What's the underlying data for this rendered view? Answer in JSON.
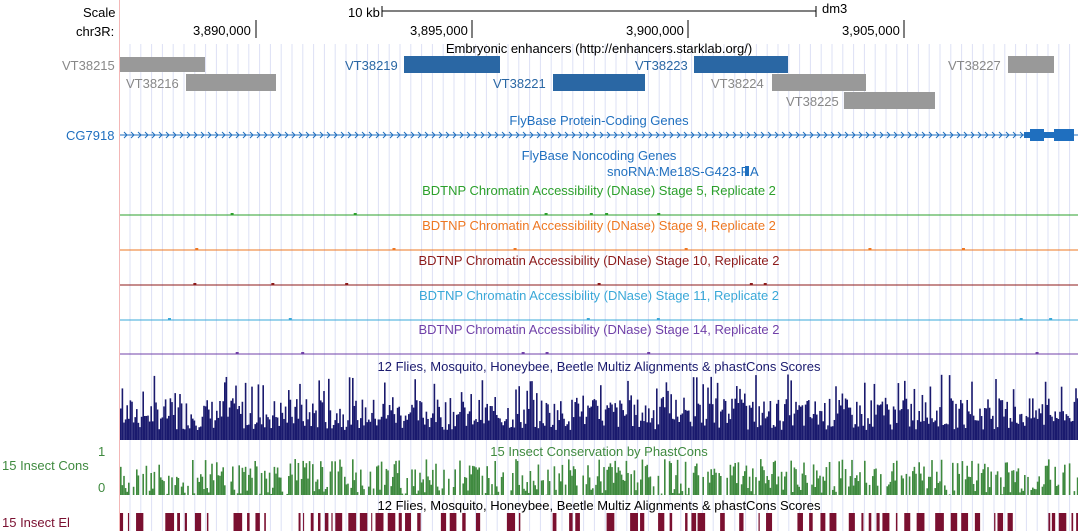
{
  "header": {
    "scale_label": "Scale",
    "chrom_label": "chr3R:",
    "scale_bar_text": "10 kb",
    "assembly": "dm3",
    "positions": [
      "3,890,000",
      "3,895,000",
      "3,900,000",
      "3,905,000"
    ]
  },
  "tracks": {
    "enhancers": {
      "title": "Embryonic enhancers (http://enhancers.starklab.org/)",
      "items": [
        {
          "name": "VT38215",
          "style": "gray"
        },
        {
          "name": "VT38216",
          "style": "gray"
        },
        {
          "name": "VT38219",
          "style": "blue"
        },
        {
          "name": "VT38221",
          "style": "blue"
        },
        {
          "name": "VT38223",
          "style": "blue"
        },
        {
          "name": "VT38224",
          "style": "gray"
        },
        {
          "name": "VT38225",
          "style": "gray"
        },
        {
          "name": "VT38227",
          "style": "gray"
        }
      ]
    },
    "protein_genes": {
      "title": "FlyBase Protein-Coding Genes",
      "gene": "CG7918"
    },
    "noncoding_genes": {
      "title": "FlyBase Noncoding Genes",
      "gene": "snoRNA:Me18S-G423-RA"
    },
    "dnase": [
      {
        "title": "BDTNP Chromatin Accessibility (DNase) Stage 5, Replicate 2",
        "color": "#2ca02c"
      },
      {
        "title": "BDTNP Chromatin Accessibility (DNase) Stage 9, Replicate 2",
        "color": "#ee7722"
      },
      {
        "title": "BDTNP Chromatin Accessibility (DNase) Stage 10, Replicate 2",
        "color": "#8c1a1a"
      },
      {
        "title": "BDTNP Chromatin Accessibility (DNase) Stage 11, Replicate 2",
        "color": "#3aa8d8"
      },
      {
        "title": "BDTNP Chromatin Accessibility (DNase) Stage 14, Replicate 2",
        "color": "#7040a8"
      }
    ],
    "multiz": {
      "title": "12 Flies, Mosquito, Honeybee, Beetle Multiz Alignments & phastCons Scores",
      "color": "#1a1a6e"
    },
    "insect_cons": {
      "title": "15 Insect Conservation by PhastCons",
      "side_label": "15 Insect Cons",
      "ymax": "1",
      "ymin": "0",
      "color": "#3f8a3f"
    },
    "insect_el": {
      "title": "12 Flies, Mosquito, Honeybee, Beetle Multiz Alignments & phastCons Scores",
      "side_label": "15 Insect El",
      "color": "#7a1030"
    }
  },
  "colors": {
    "gene_blue": "#1f6fbf",
    "enh_blue": "#2a67a4",
    "enh_gray": "#999999",
    "gray_text": "#888888"
  }
}
